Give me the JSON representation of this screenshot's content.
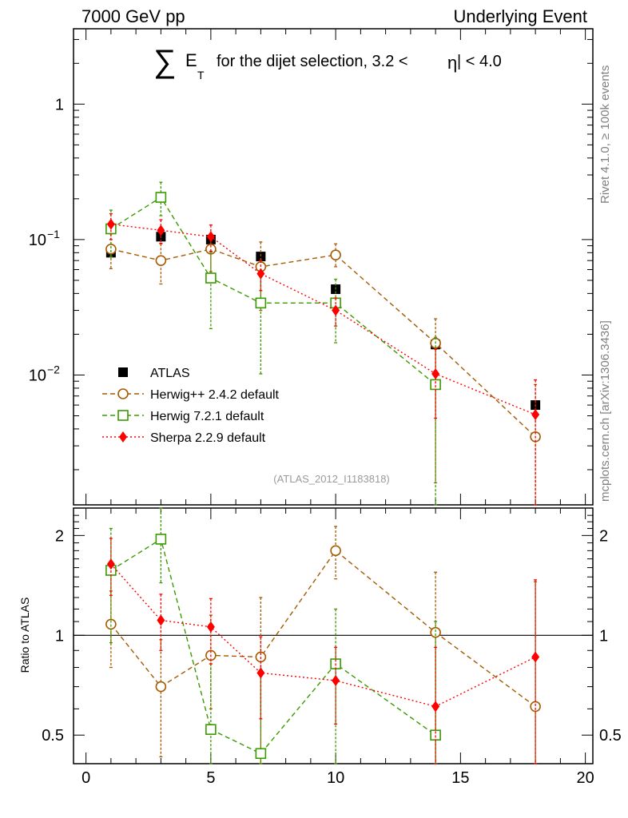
{
  "header": {
    "left": "7000 GeV pp",
    "right": "Underlying Event"
  },
  "side_labels": {
    "right_upper": "Rivet 4.1.0, ≥ 100k events",
    "right_lower": "mcplots.cern.ch [arXiv:1306.3436]"
  },
  "watermark": "(ATLAS_2012_I1183818)",
  "plot_title": {
    "sigma": "∑",
    "e": "E",
    "sub": "T",
    "rest_a": "for the dijet selection, 3.2 <",
    "eta": "η",
    "rest_b": "| < 4.0"
  },
  "ratio_ylabel": "Ratio to ATLAS",
  "colors": {
    "atlas": "#000000",
    "herwigpp": "#a65a00",
    "herwig7": "#3a9a00",
    "sherpa": "#ff0000"
  },
  "chart_data": [
    {
      "type": "line",
      "yscale": "log",
      "xlim": [
        -0.5,
        20.3
      ],
      "ylim": [
        0.0011,
        3.6
      ],
      "y_ticks": [
        {
          "label_main": "1",
          "label_exp": ""
        },
        {
          "label_main": "10",
          "label_exp": "−1"
        },
        {
          "label_main": "10",
          "label_exp": "−2"
        }
      ],
      "y_tick_values": [
        1,
        0.1,
        0.01
      ],
      "legend_position": "lower-left",
      "series": [
        {
          "name": "ATLAS",
          "style": "square-filled",
          "color": "#000000",
          "x": [
            1,
            3,
            5,
            7,
            10,
            14,
            18
          ],
          "y": [
            0.08,
            0.105,
            0.1,
            0.075,
            0.043,
            0.0168,
            0.006
          ],
          "yerr_lo": [
            0.0793,
            0.1038,
            0.0988,
            0.0738,
            0.0418,
            0.0163,
            0.0057
          ],
          "yerr_hi": [
            0.0807,
            0.1062,
            0.1012,
            0.0762,
            0.0442,
            0.0173,
            0.0063
          ]
        },
        {
          "name": "Herwig++ 2.4.2 default",
          "style": "circle-open",
          "color": "#a65a00",
          "dash": "6,4",
          "x": [
            1,
            3,
            5,
            7,
            10,
            14,
            18
          ],
          "y": [
            0.085,
            0.07,
            0.085,
            0.063,
            0.077,
            0.0172,
            0.0035
          ],
          "yerr_lo": [
            0.061,
            0.047,
            0.058,
            0.03,
            0.063,
            0.0016,
            0.0011
          ],
          "yerr_hi": [
            0.11,
            0.093,
            0.11,
            0.096,
            0.093,
            0.026,
            0.0085
          ]
        },
        {
          "name": "Herwig 7.2.1 default",
          "style": "square-open",
          "color": "#3a9a00",
          "dash": "6,4",
          "x": [
            1,
            3,
            5,
            7,
            10,
            14
          ],
          "y": [
            0.12,
            0.205,
            0.052,
            0.034,
            0.034,
            0.0085
          ],
          "yerr_lo": [
            0.075,
            0.15,
            0.022,
            0.0102,
            0.0173,
            0.0011
          ],
          "yerr_hi": [
            0.165,
            0.265,
            0.081,
            0.058,
            0.051,
            0.019
          ]
        },
        {
          "name": "Sherpa 2.2.9 default",
          "style": "diamond-filled",
          "color": "#ff0000",
          "dash": "2,3",
          "x": [
            1,
            3,
            5,
            7,
            10,
            14,
            18
          ],
          "y": [
            0.13,
            0.117,
            0.105,
            0.056,
            0.03,
            0.0102,
            0.0051
          ],
          "yerr_lo": [
            0.1,
            0.094,
            0.082,
            0.042,
            0.023,
            0.0048,
            0.0011
          ],
          "yerr_hi": [
            0.155,
            0.14,
            0.128,
            0.07,
            0.037,
            0.0155,
            0.0092
          ]
        }
      ]
    },
    {
      "type": "line",
      "yscale": "log",
      "xlim": [
        -0.5,
        20.3
      ],
      "ylim": [
        0.41,
        2.42
      ],
      "ylabel": "Ratio to ATLAS",
      "x_ticks": [
        0,
        5,
        10,
        15,
        20
      ],
      "y_ticks": [
        2,
        1,
        0.5
      ],
      "reference_line": 1,
      "series": [
        {
          "name": "Herwig++ 2.4.2 default",
          "style": "circle-open",
          "color": "#a65a00",
          "dash": "6,4",
          "x": [
            1,
            3,
            5,
            7,
            10,
            14,
            18
          ],
          "y": [
            1.08,
            0.7,
            0.87,
            0.86,
            1.8,
            1.02,
            0.61
          ],
          "yerr_lo": [
            0.8,
            0.43,
            0.6,
            0.4,
            1.48,
            0.4,
            0.41
          ],
          "yerr_hi": [
            1.36,
            0.97,
            1.15,
            1.3,
            2.13,
            1.55,
            1.45
          ]
        },
        {
          "name": "Herwig 7.2.1 default",
          "style": "square-open",
          "color": "#3a9a00",
          "dash": "6,4",
          "x": [
            1,
            3,
            5,
            7,
            10,
            14
          ],
          "y": [
            1.57,
            1.95,
            0.52,
            0.44,
            0.82,
            0.5
          ],
          "yerr_lo": [
            0.95,
            1.44,
            0.41,
            0.41,
            0.41,
            0.41
          ],
          "yerr_hi": [
            2.1,
            2.42,
            0.82,
            0.78,
            1.2,
            1.1
          ]
        },
        {
          "name": "Sherpa 2.2.9 default",
          "style": "diamond-filled",
          "color": "#ff0000",
          "dash": "2,3",
          "x": [
            1,
            3,
            5,
            7,
            10,
            14,
            18
          ],
          "y": [
            1.64,
            1.11,
            1.06,
            0.77,
            0.73,
            0.61,
            0.86
          ],
          "yerr_lo": [
            1.32,
            0.9,
            0.82,
            0.56,
            0.54,
            0.41,
            0.41
          ],
          "yerr_hi": [
            1.96,
            1.33,
            1.29,
            0.99,
            0.92,
            0.92,
            1.47
          ]
        }
      ]
    }
  ]
}
